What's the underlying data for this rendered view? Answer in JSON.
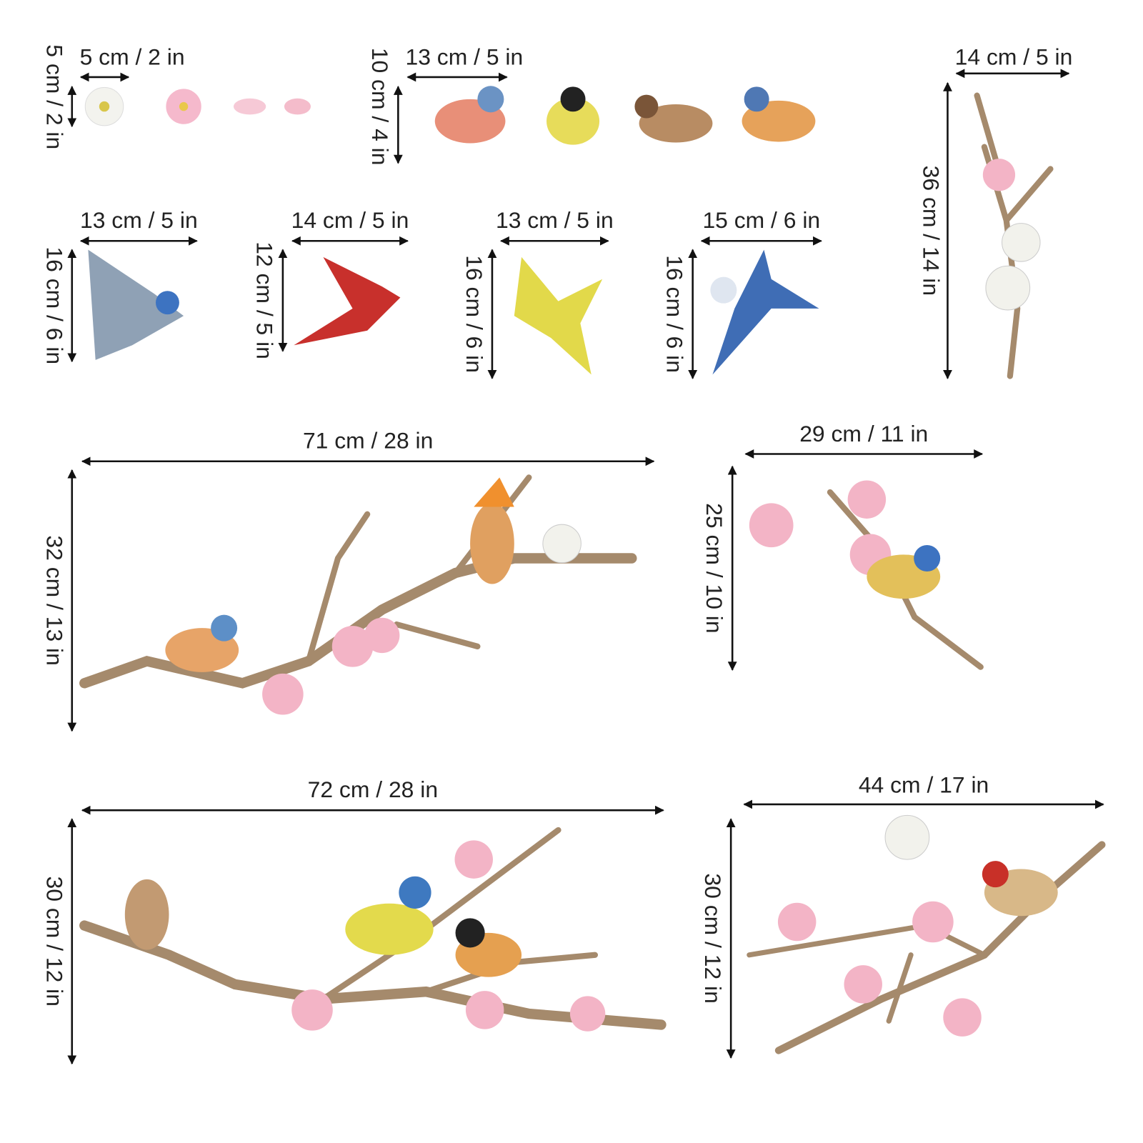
{
  "stickers": [
    {
      "width": "5 cm / 2 in",
      "height": "5 cm / 2 in"
    },
    {
      "width": "13 cm / 5 in",
      "height": "10 cm / 4 in"
    },
    {
      "width": "14 cm / 5 in",
      "height": "36 cm / 14 in"
    },
    {
      "width": "13 cm / 5 in",
      "height": "16 cm / 6 in"
    },
    {
      "width": "14 cm / 5 in",
      "height": "12 cm / 5 in"
    },
    {
      "width": "13 cm / 5 in",
      "height": "16 cm / 6 in"
    },
    {
      "width": "15 cm / 6 in",
      "height": "16 cm / 6 in"
    },
    {
      "width": "71 cm / 28 in",
      "height": "32 cm / 13 in"
    },
    {
      "width": "29 cm / 11 in",
      "height": "25 cm / 10 in"
    },
    {
      "width": "72 cm / 28 in",
      "height": "30 cm / 12 in"
    },
    {
      "width": "44 cm / 17 in",
      "height": "30 cm / 12 in"
    }
  ]
}
